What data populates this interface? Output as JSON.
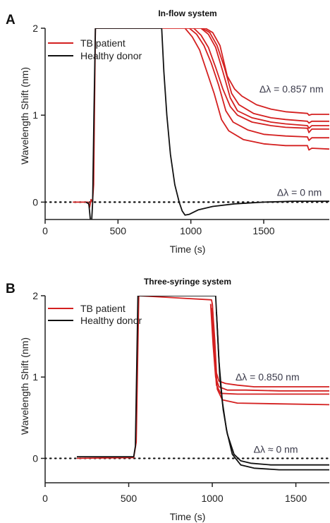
{
  "chart_data": [
    {
      "panel": "A",
      "type": "line",
      "title": "In-flow system",
      "xlabel": "Time (s)",
      "ylabel": "Wavelength Shift (nm)",
      "xlim": [
        0,
        1950
      ],
      "ylim": [
        -0.2,
        2
      ],
      "xticks": [
        0,
        500,
        1000,
        1500
      ],
      "yticks": [
        0,
        1,
        2
      ],
      "baseline": 0,
      "legend_position": "top-left",
      "legend": [
        {
          "label": "TB patient",
          "color": "#d42020"
        },
        {
          "label": "Healthy donor",
          "color": "#111111"
        }
      ],
      "annotations": [
        {
          "text": "Δλ = 0.857 nm",
          "x": 1690,
          "y": 1.26
        },
        {
          "text": "Δλ = 0 nm",
          "x": 1745,
          "y": 0.07
        }
      ],
      "series": [
        {
          "name": "TB patient",
          "color": "#d42020",
          "points": [
            [
              190,
              0
            ],
            [
              295,
              0
            ],
            [
              305,
              -0.06
            ],
            [
              315,
              0.03
            ],
            [
              325,
              0
            ],
            [
              333,
              0.2
            ],
            [
              345,
              2
            ],
            [
              1100,
              2
            ],
            [
              1150,
              1.95
            ],
            [
              1200,
              1.8
            ],
            [
              1250,
              1.45
            ],
            [
              1300,
              1.3
            ],
            [
              1350,
              1.22
            ],
            [
              1450,
              1.12
            ],
            [
              1550,
              1.07
            ],
            [
              1650,
              1.04
            ],
            [
              1800,
              1.02
            ],
            [
              1810,
              1.0
            ],
            [
              1830,
              1.01
            ],
            [
              1950,
              1.01
            ]
          ]
        },
        {
          "name": "TB patient",
          "color": "#d42020",
          "points": [
            [
              1080,
              2
            ],
            [
              1130,
              1.95
            ],
            [
              1180,
              1.8
            ],
            [
              1230,
              1.55
            ],
            [
              1280,
              1.25
            ],
            [
              1330,
              1.12
            ],
            [
              1430,
              1.02
            ],
            [
              1550,
              0.97
            ],
            [
              1650,
              0.95
            ],
            [
              1800,
              0.93
            ],
            [
              1810,
              0.91
            ],
            [
              1830,
              0.93
            ],
            [
              1950,
              0.93
            ]
          ]
        },
        {
          "name": "TB patient",
          "color": "#d42020",
          "points": [
            [
              1070,
              2
            ],
            [
              1120,
              1.93
            ],
            [
              1170,
              1.78
            ],
            [
              1220,
              1.5
            ],
            [
              1270,
              1.2
            ],
            [
              1320,
              1.05
            ],
            [
              1420,
              0.97
            ],
            [
              1550,
              0.92
            ],
            [
              1650,
              0.9
            ],
            [
              1800,
              0.88
            ],
            [
              1810,
              0.85
            ],
            [
              1830,
              0.88
            ],
            [
              1950,
              0.88
            ]
          ]
        },
        {
          "name": "TB patient",
          "color": "#d42020",
          "points": [
            [
              1020,
              2
            ],
            [
              1070,
              1.92
            ],
            [
              1120,
              1.78
            ],
            [
              1170,
              1.55
            ],
            [
              1220,
              1.3
            ],
            [
              1270,
              1.1
            ],
            [
              1320,
              1.0
            ],
            [
              1420,
              0.92
            ],
            [
              1550,
              0.88
            ],
            [
              1650,
              0.86
            ],
            [
              1800,
              0.85
            ],
            [
              1810,
              0.8
            ],
            [
              1830,
              0.84
            ],
            [
              1950,
              0.84
            ]
          ]
        },
        {
          "name": "TB patient",
          "color": "#d42020",
          "points": [
            [
              990,
              2
            ],
            [
              1040,
              1.93
            ],
            [
              1090,
              1.8
            ],
            [
              1140,
              1.6
            ],
            [
              1190,
              1.35
            ],
            [
              1240,
              1.05
            ],
            [
              1290,
              0.92
            ],
            [
              1390,
              0.83
            ],
            [
              1500,
              0.78
            ],
            [
              1650,
              0.76
            ],
            [
              1800,
              0.75
            ],
            [
              1810,
              0.71
            ],
            [
              1830,
              0.74
            ],
            [
              1950,
              0.74
            ]
          ]
        },
        {
          "name": "TB patient",
          "color": "#d42020",
          "points": [
            [
              960,
              2
            ],
            [
              1010,
              1.9
            ],
            [
              1060,
              1.75
            ],
            [
              1110,
              1.5
            ],
            [
              1160,
              1.25
            ],
            [
              1210,
              0.95
            ],
            [
              1260,
              0.82
            ],
            [
              1360,
              0.72
            ],
            [
              1500,
              0.67
            ],
            [
              1650,
              0.65
            ],
            [
              1800,
              0.65
            ],
            [
              1810,
              0.6
            ],
            [
              1830,
              0.62
            ],
            [
              1950,
              0.61
            ]
          ]
        },
        {
          "name": "Healthy donor",
          "color": "#111111",
          "points": [
            [
              280,
              0
            ],
            [
              300,
              -0.02
            ],
            [
              310,
              -0.2
            ],
            [
              320,
              -0.2
            ],
            [
              326,
              0
            ],
            [
              335,
              1
            ],
            [
              345,
              2
            ],
            [
              800,
              2
            ],
            [
              815,
              1.5
            ],
            [
              835,
              1.0
            ],
            [
              860,
              0.55
            ],
            [
              890,
              0.2
            ],
            [
              920,
              0
            ],
            [
              940,
              -0.1
            ],
            [
              960,
              -0.15
            ],
            [
              990,
              -0.14
            ],
            [
              1050,
              -0.09
            ],
            [
              1150,
              -0.05
            ],
            [
              1300,
              -0.02
            ],
            [
              1500,
              0
            ],
            [
              1700,
              0.01
            ],
            [
              1950,
              0.01
            ]
          ]
        }
      ]
    },
    {
      "panel": "B",
      "type": "line",
      "title": "Three-syringe system",
      "xlabel": "Time (s)",
      "ylabel": "Wavelength Shift (nm)",
      "xlim": [
        0,
        1700
      ],
      "ylim": [
        -0.3,
        2
      ],
      "xticks": [
        0,
        500,
        1000,
        1500
      ],
      "yticks": [
        0,
        1,
        2
      ],
      "baseline": 0,
      "legend_position": "top-left",
      "legend": [
        {
          "label": "TB patient",
          "color": "#d42020"
        },
        {
          "label": "Healthy donor",
          "color": "#111111"
        }
      ],
      "annotations": [
        {
          "text": "Δλ = 0.850 nm",
          "x": 1330,
          "y": 0.96
        },
        {
          "text": "Δλ ≈ 0 nm",
          "x": 1380,
          "y": 0.07
        }
      ],
      "series": [
        {
          "name": "TB patient",
          "color": "#d42020",
          "points": [
            [
              190,
              0
            ],
            [
              530,
              0.01
            ],
            [
              545,
              0.2
            ],
            [
              560,
              2
            ],
            [
              995,
              1.95
            ],
            [
              1000,
              1.9
            ],
            [
              1015,
              1.45
            ],
            [
              1025,
              1.05
            ],
            [
              1040,
              0.95
            ],
            [
              1080,
              0.92
            ],
            [
              1150,
              0.9
            ],
            [
              1250,
              0.88
            ],
            [
              1400,
              0.88
            ],
            [
              1700,
              0.88
            ]
          ]
        },
        {
          "name": "TB patient",
          "color": "#d42020",
          "points": [
            [
              990,
              1.9
            ],
            [
              1005,
              1.4
            ],
            [
              1020,
              1.0
            ],
            [
              1040,
              0.88
            ],
            [
              1090,
              0.84
            ],
            [
              1200,
              0.84
            ],
            [
              1400,
              0.83
            ],
            [
              1700,
              0.83
            ]
          ]
        },
        {
          "name": "TB patient",
          "color": "#d42020",
          "points": [
            [
              995,
              1.85
            ],
            [
              1010,
              1.3
            ],
            [
              1025,
              0.9
            ],
            [
              1050,
              0.8
            ],
            [
              1150,
              0.79
            ],
            [
              1400,
              0.79
            ],
            [
              1700,
              0.79
            ]
          ]
        },
        {
          "name": "TB patient",
          "color": "#d42020",
          "points": [
            [
              1000,
              1.9
            ],
            [
              1015,
              1.3
            ],
            [
              1030,
              0.85
            ],
            [
              1060,
              0.72
            ],
            [
              1150,
              0.68
            ],
            [
              1400,
              0.67
            ],
            [
              1700,
              0.66
            ]
          ]
        },
        {
          "name": "Healthy donor",
          "color": "#111111",
          "points": [
            [
              190,
              0.02
            ],
            [
              530,
              0.02
            ],
            [
              540,
              0.15
            ],
            [
              555,
              2
            ],
            [
              1020,
              2
            ],
            [
              1030,
              1.6
            ],
            [
              1045,
              1.0
            ],
            [
              1065,
              0.6
            ],
            [
              1090,
              0.3
            ],
            [
              1130,
              0.05
            ],
            [
              1170,
              -0.03
            ],
            [
              1230,
              -0.06
            ],
            [
              1350,
              -0.08
            ],
            [
              1700,
              -0.08
            ]
          ]
        },
        {
          "name": "Healthy donor",
          "color": "#111111",
          "points": [
            [
              1025,
              1.8
            ],
            [
              1040,
              1.2
            ],
            [
              1060,
              0.7
            ],
            [
              1085,
              0.35
            ],
            [
              1120,
              0.05
            ],
            [
              1170,
              -0.08
            ],
            [
              1250,
              -0.12
            ],
            [
              1400,
              -0.14
            ],
            [
              1700,
              -0.14
            ]
          ]
        }
      ]
    }
  ]
}
